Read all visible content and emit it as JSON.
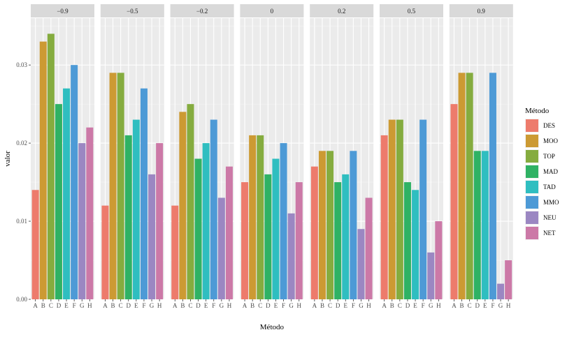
{
  "chart_data": {
    "type": "bar",
    "facet_by": "rho",
    "facets": [
      "-0.9",
      "-0.5",
      "-0.2",
      "0",
      "0.2",
      "0.5",
      "0.9"
    ],
    "facet_labels": [
      "−0.9",
      "−0.5",
      "−0.2",
      "0",
      "0.2",
      "0.5",
      "0.9"
    ],
    "categories": [
      "A",
      "B",
      "C",
      "D",
      "E",
      "F",
      "G",
      "H"
    ],
    "series_names": [
      "DES",
      "MOO",
      "TOP",
      "MAD",
      "TAD",
      "MMO",
      "NEU",
      "NET"
    ],
    "colors": [
      "#ED7B6C",
      "#CC9A33",
      "#85AC3F",
      "#2FB264",
      "#2FBEC0",
      "#4D9AD6",
      "#9B87C2",
      "#CC79A7"
    ],
    "values": [
      [
        0.014,
        0.033,
        0.034,
        0.025,
        0.027,
        0.03,
        0.02,
        0.022
      ],
      [
        0.012,
        0.029,
        0.029,
        0.021,
        0.023,
        0.027,
        0.016,
        0.02
      ],
      [
        0.012,
        0.024,
        0.025,
        0.018,
        0.02,
        0.023,
        0.013,
        0.017
      ],
      [
        0.015,
        0.021,
        0.021,
        0.016,
        0.018,
        0.02,
        0.011,
        0.015
      ],
      [
        0.017,
        0.019,
        0.019,
        0.015,
        0.016,
        0.019,
        0.009,
        0.013
      ],
      [
        0.021,
        0.023,
        0.023,
        0.015,
        0.014,
        0.023,
        0.006,
        0.01
      ],
      [
        0.025,
        0.029,
        0.029,
        0.019,
        0.019,
        0.029,
        0.002,
        0.005
      ]
    ],
    "ylim": [
      0,
      0.036
    ],
    "yticks": [
      0.0,
      0.01,
      0.02,
      0.03
    ],
    "ytick_labels": [
      "0.00",
      "0.01",
      "0.02",
      "0.03"
    ],
    "xlabel": "Método",
    "ylabel": "valor",
    "legend_title": "Método",
    "legend_position": "right",
    "grid": true
  }
}
